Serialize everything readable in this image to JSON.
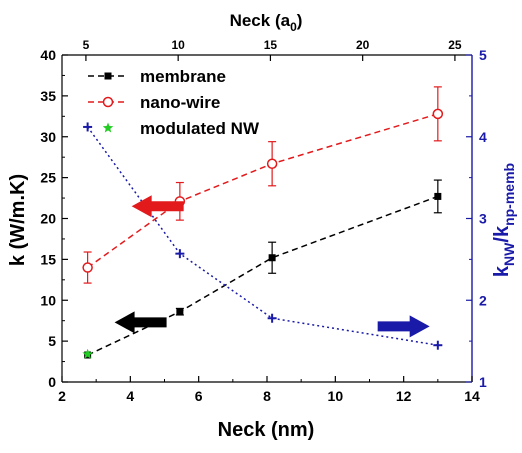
{
  "chart_data": {
    "type": "line",
    "xlabel": "Neck (nm)",
    "ylabel": "k (W/m.K)",
    "top_xlabel": "Neck (a",
    "top_xlabel_sub": "0",
    "top_xlabel_close": ")",
    "right_ylabel": {
      "main": "k",
      "sub1": "NW",
      "slash": "/k",
      "sub2": "np-memb"
    },
    "xlim": [
      2,
      14
    ],
    "ylim": [
      0,
      40
    ],
    "y2lim": [
      1,
      5
    ],
    "x_ticks": [
      "2",
      "4",
      "6",
      "8",
      "10",
      "12",
      "14"
    ],
    "y_ticks": [
      "0",
      "5",
      "10",
      "15",
      "20",
      "25",
      "30",
      "35",
      "40"
    ],
    "y2_ticks": [
      "1",
      "2",
      "3",
      "4",
      "5"
    ],
    "top_ticks": [
      {
        "label": "5",
        "x": 2.7
      },
      {
        "label": "10",
        "x": 5.4
      },
      {
        "label": "15",
        "x": 8.1
      },
      {
        "label": "20",
        "x": 10.8
      },
      {
        "label": "25",
        "x": 13.5
      }
    ],
    "legend": [
      {
        "label": "membrane",
        "color": "#000000",
        "style": "dashed-square"
      },
      {
        "label": "nano-wire",
        "color": "#e31a1c",
        "style": "dashed-open-circle"
      },
      {
        "label": "modulated NW",
        "color": "#22cc22",
        "style": "star"
      }
    ],
    "series": [
      {
        "name": "membrane",
        "color": "#000000",
        "x": [
          2.75,
          5.45,
          8.15,
          13.0
        ],
        "y": [
          3.3,
          8.6,
          15.2,
          22.7
        ],
        "err": [
          0,
          0.4,
          1.9,
          2.0
        ]
      },
      {
        "name": "nano-wire",
        "color": "#e31a1c",
        "x": [
          2.75,
          5.45,
          8.15,
          13.0
        ],
        "y": [
          14.0,
          22.1,
          26.7,
          32.8
        ],
        "err": [
          1.9,
          2.3,
          2.7,
          3.3
        ]
      },
      {
        "name": "modulated NW",
        "color": "#22cc22",
        "x": [
          2.75
        ],
        "y": [
          3.4
        ]
      },
      {
        "name": "ratio",
        "color": "#1a1aa8",
        "axis": "right",
        "x": [
          2.75,
          5.45,
          8.15,
          13.0
        ],
        "y": [
          4.12,
          2.57,
          1.78,
          1.45
        ]
      }
    ],
    "arrows": [
      {
        "color": "#e31a1c",
        "direction": "left",
        "x": 4.8,
        "y": 21.5
      },
      {
        "color": "#000000",
        "direction": "left",
        "x": 4.3,
        "y": 7.3
      },
      {
        "color": "#1a1aa8",
        "direction": "right",
        "x": 12.0,
        "y2": 1.68
      }
    ],
    "grid": false
  }
}
